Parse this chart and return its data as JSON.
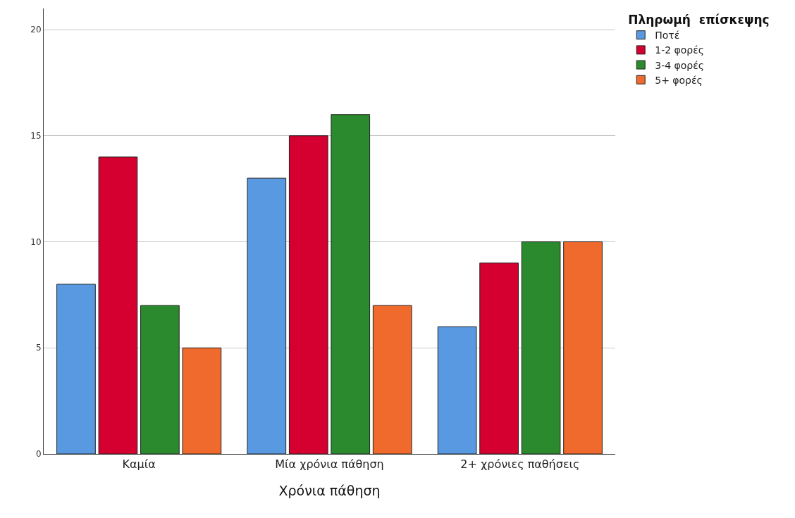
{
  "chart_data": {
    "type": "bar",
    "xlabel": "Χρόνια πάθηση",
    "legend_title": "Πληρωμή  επίσκεψης",
    "categories": [
      "Καμία",
      "Μία χρόνια πάθηση",
      "2+ χρόνιες παθήσεις"
    ],
    "series": [
      {
        "name": "Ποτέ",
        "color": "#5899e2",
        "values": [
          8,
          13,
          6
        ]
      },
      {
        "name": "1-2 φορές",
        "color": "#d5002f",
        "values": [
          14,
          15,
          9
        ]
      },
      {
        "name": "3-4 φορές",
        "color": "#2b8a2e",
        "values": [
          7,
          16,
          10
        ]
      },
      {
        "name": "5+ φορές",
        "color": "#ef6a2c",
        "values": [
          5,
          7,
          10
        ]
      }
    ],
    "ylim": [
      0,
      21
    ],
    "yticks": [
      0,
      5,
      10,
      15,
      20
    ],
    "grid": "y",
    "legend": "top right"
  }
}
